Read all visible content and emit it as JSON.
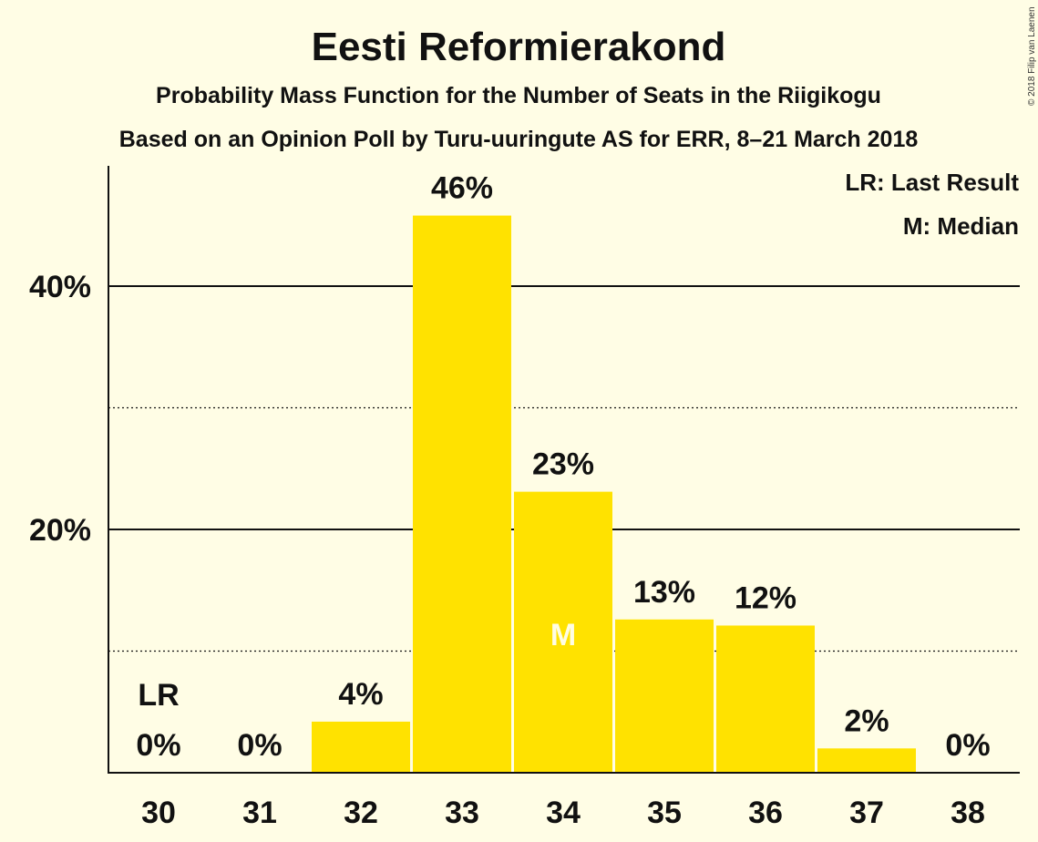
{
  "chart_data": {
    "type": "bar",
    "title": "Eesti Reformierakond",
    "subtitle": "Probability Mass Function for the Number of Seats in the Riigikogu",
    "subtitle2": "Based on an Opinion Poll by Turu-uuringute AS for ERR, 8–21 March 2018",
    "categories": [
      "30",
      "31",
      "32",
      "33",
      "34",
      "35",
      "36",
      "37",
      "38"
    ],
    "values": [
      0,
      0,
      4.2,
      45.8,
      23.1,
      12.6,
      12.1,
      2.0,
      0
    ],
    "value_labels": [
      "0%",
      "0%",
      "4%",
      "46%",
      "23%",
      "13%",
      "12%",
      "2%",
      "0%"
    ],
    "ylim": [
      0,
      50
    ],
    "y_ticks": [
      {
        "value": 20,
        "label": "20%"
      },
      {
        "value": 40,
        "label": "40%"
      }
    ],
    "minor_gridlines": [
      10,
      30
    ],
    "last_result": {
      "category": "30",
      "label": "LR"
    },
    "median": {
      "category": "34",
      "label": "M"
    },
    "legend": [
      "LR: Last Result",
      "M: Median"
    ],
    "legend_position": "top-right",
    "bar_color": "#FFE200",
    "background_color": "#FFFDE5"
  },
  "copyright": "© 2018 Filip van Laenen"
}
